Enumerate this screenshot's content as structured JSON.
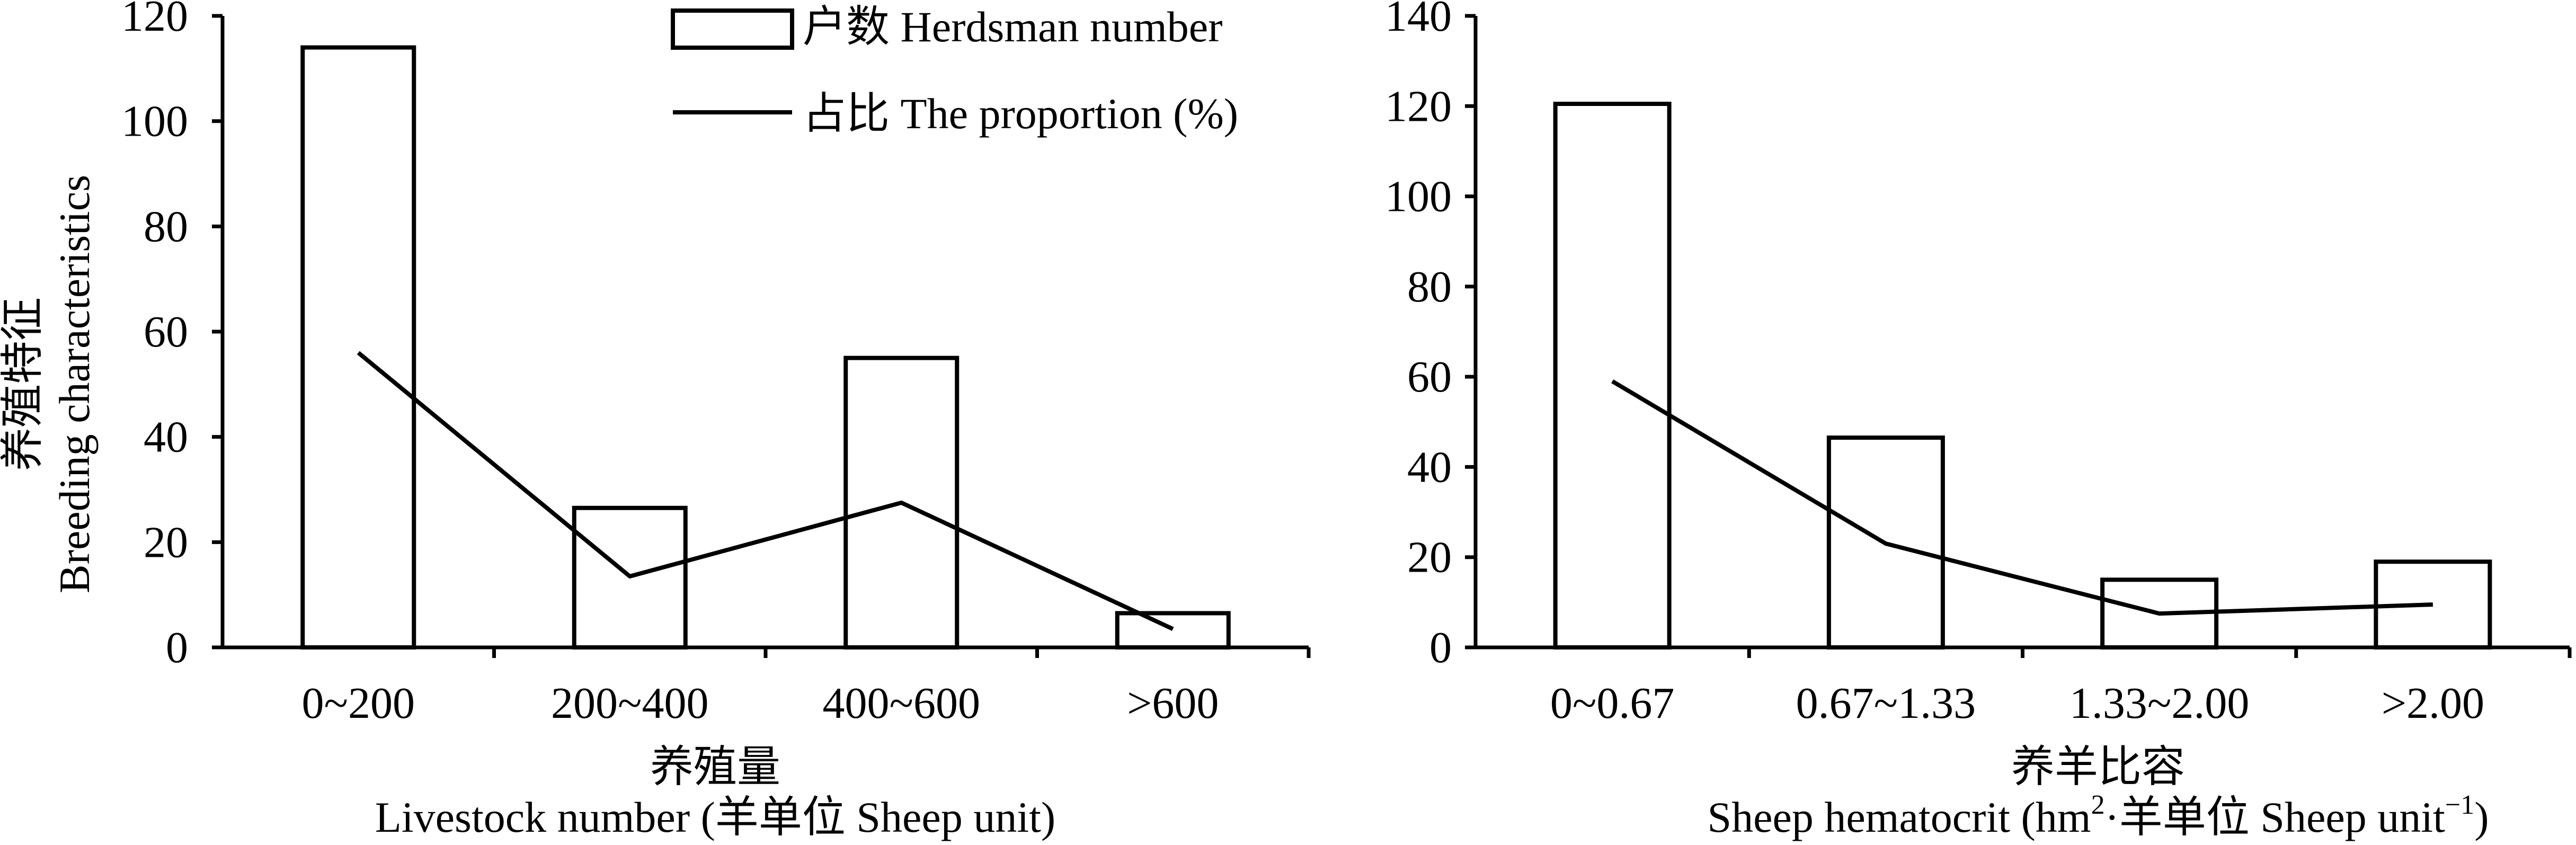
{
  "y_axis_title": {
    "zh": "养殖特征",
    "en": "Breeding characteristics"
  },
  "legend": {
    "bar_label": "户数 Herdsman number",
    "line_label": "占比 The proportion (%)"
  },
  "chart_data": [
    {
      "type": "bar",
      "categories": [
        "0~200",
        "200~400",
        "400~600",
        ">600"
      ],
      "series": [
        {
          "name": "户数 Herdsman number",
          "type": "bar",
          "values": [
            114,
            26.5,
            55,
            6.5
          ]
        },
        {
          "name": "占比 The proportion (%)",
          "type": "line",
          "values": [
            56,
            13.5,
            27.5,
            3.5
          ]
        }
      ],
      "xlabel_zh": "养殖量",
      "xlabel_en": "Livestock number (羊单位 Sheep unit)",
      "ylim": [
        0,
        120
      ],
      "yticks": [
        "0",
        "20",
        "40",
        "60",
        "80",
        "100",
        "120"
      ]
    },
    {
      "type": "bar",
      "categories": [
        "0~0.67",
        "0.67~1.33",
        "1.33~2.00",
        ">2.00"
      ],
      "series": [
        {
          "name": "户数 Herdsman number",
          "type": "bar",
          "values": [
            120.5,
            46.5,
            15,
            19
          ]
        },
        {
          "name": "占比 The proportion (%)",
          "type": "line",
          "values": [
            59,
            23,
            7.5,
            9.5
          ]
        }
      ],
      "xlabel_zh": "养羊比容",
      "xlabel_en_main": "Sheep hematocrit (hm",
      "xlabel_en_sup1": "2",
      "xlabel_en_mid": "·羊单位 Sheep unit",
      "xlabel_en_sup2": "−1",
      "xlabel_en_end": ")",
      "ylim": [
        0,
        140
      ],
      "yticks": [
        "0",
        "20",
        "40",
        "60",
        "80",
        "100",
        "120",
        "140"
      ]
    }
  ]
}
